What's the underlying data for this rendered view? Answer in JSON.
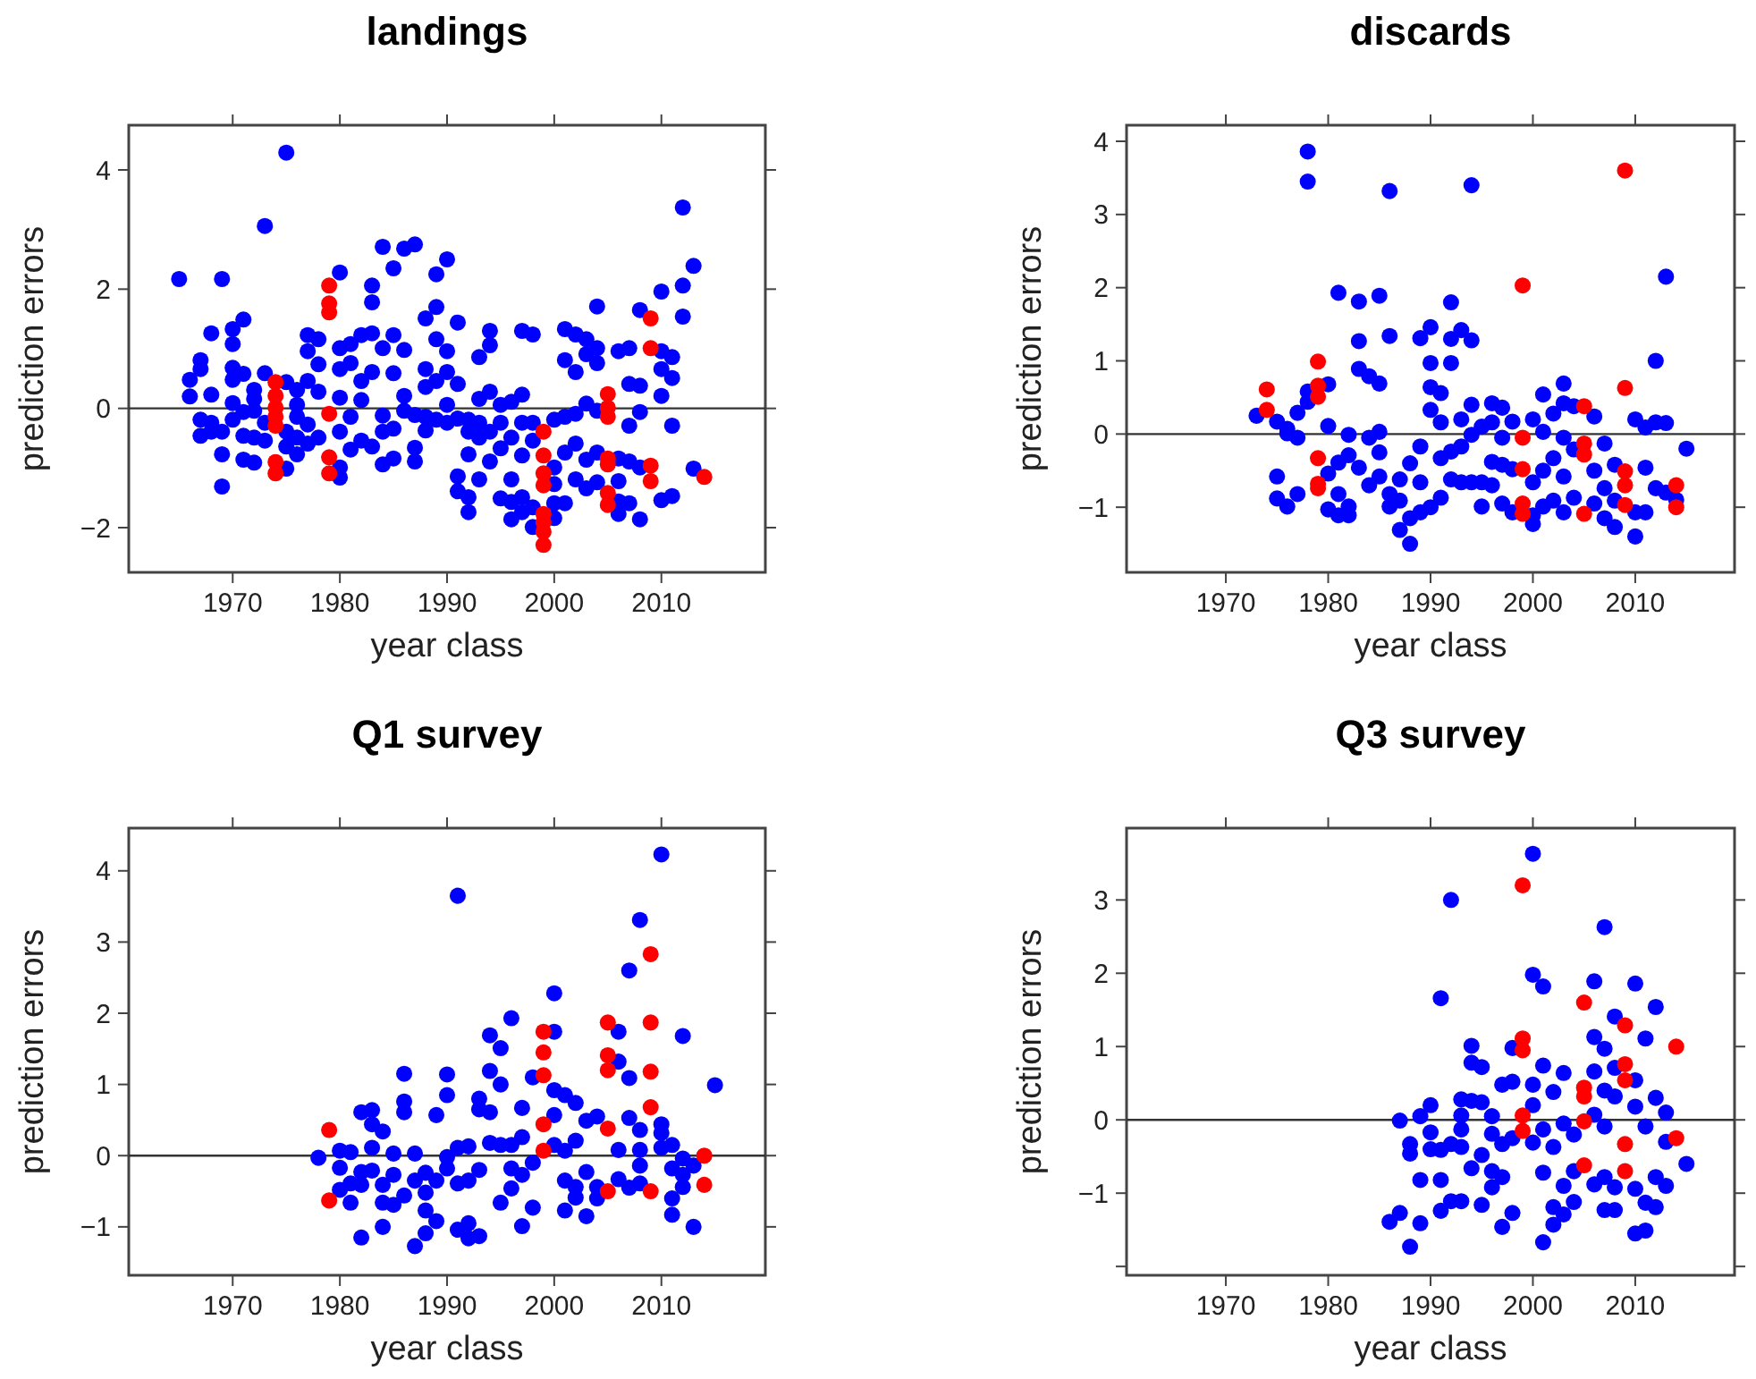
{
  "chart_data": [
    {
      "type": "scatter",
      "title": "landings",
      "xlabel": "year class",
      "ylabel": "prediction errors",
      "xlim": [
        1960.3,
        2019.7
      ],
      "ylim": [
        -2.75,
        4.75
      ],
      "xticks": [
        1970,
        1980,
        1990,
        2000,
        2010
      ],
      "yticks": [
        -2,
        0,
        2,
        4
      ],
      "marker": "circle",
      "ref_lines": [
        {
          "axis": "y",
          "value": 0,
          "color": "#333333"
        }
      ],
      "series": [
        {
          "color": "#0000ff",
          "x": [
            1965,
            1966,
            1966,
            1967,
            1967,
            1967,
            1967,
            1968,
            1968,
            1968,
            1968,
            1969,
            1969,
            1969,
            1969,
            1970,
            1970,
            1970,
            1970,
            1970,
            1970,
            1971,
            1971,
            1971,
            1971,
            1971,
            1972,
            1972,
            1972,
            1972,
            1972,
            1973,
            1973,
            1973,
            1973,
            1975,
            1975,
            1975,
            1975,
            1975,
            1976,
            1976,
            1976,
            1976,
            1976,
            1977,
            1977,
            1977,
            1977,
            1977,
            1978,
            1978,
            1978,
            1978,
            1980,
            1980,
            1980,
            1980,
            1980,
            1980,
            1980,
            1981,
            1981,
            1981,
            1981,
            1982,
            1982,
            1982,
            1982,
            1983,
            1983,
            1983,
            1983,
            1983,
            1984,
            1984,
            1984,
            1984,
            1984,
            1985,
            1985,
            1985,
            1985,
            1985,
            1986,
            1986,
            1986,
            1986,
            1987,
            1987,
            1987,
            1987,
            1988,
            1988,
            1988,
            1988,
            1988,
            1989,
            1989,
            1989,
            1989,
            1989,
            1990,
            1990,
            1990,
            1990,
            1990,
            1991,
            1991,
            1991,
            1991,
            1991,
            1992,
            1992,
            1992,
            1992,
            1992,
            1993,
            1993,
            1993,
            1993,
            1993,
            1994,
            1994,
            1994,
            1994,
            1994,
            1995,
            1995,
            1995,
            1995,
            1996,
            1996,
            1996,
            1996,
            1996,
            1997,
            1997,
            1997,
            1997,
            1997,
            1997,
            1998,
            1998,
            1998,
            1998,
            1998,
            2000,
            2000,
            2000,
            2000,
            2000,
            2001,
            2001,
            2001,
            2001,
            2001,
            2002,
            2002,
            2002,
            2002,
            2002,
            2003,
            2003,
            2003,
            2003,
            2003,
            2004,
            2004,
            2004,
            2004,
            2004,
            2004,
            2006,
            2006,
            2006,
            2006,
            2006,
            2007,
            2007,
            2007,
            2007,
            2007,
            2008,
            2008,
            2008,
            2008,
            2008,
            2010,
            2010,
            2010,
            2010,
            2010,
            2011,
            2011,
            2011,
            2011,
            2012,
            2012,
            2012,
            2013,
            2013
          ],
          "values": [
            2.17,
            0.48,
            0.2,
            0.81,
            0.66,
            -0.19,
            -0.46,
            1.26,
            0.23,
            -0.24,
            -0.39,
            2.17,
            -0.77,
            -1.31,
            -0.39,
            1.33,
            1.08,
            0.68,
            0.48,
            0.09,
            -0.19,
            1.49,
            0.58,
            -0.06,
            -0.46,
            -0.86,
            0.31,
            0.16,
            -0.04,
            -0.49,
            -0.91,
            3.06,
            0.59,
            -0.24,
            -0.54,
            4.29,
            0.44,
            -0.39,
            -0.64,
            -1.01,
            0.31,
            0.06,
            -0.14,
            -0.49,
            -0.77,
            1.23,
            0.96,
            0.46,
            -0.27,
            -0.59,
            1.16,
            0.74,
            0.28,
            -0.49,
            2.28,
            1.01,
            0.66,
            0.18,
            -0.39,
            -0.99,
            -1.16,
            1.08,
            0.76,
            -0.14,
            -0.69,
            1.23,
            0.46,
            0.14,
            -0.54,
            2.06,
            1.78,
            1.26,
            0.61,
            -0.64,
            2.71,
            1.01,
            -0.12,
            -0.39,
            -0.94,
            2.35,
            1.23,
            0.59,
            -0.34,
            -0.84,
            2.68,
            0.98,
            0.21,
            -0.04,
            2.75,
            -0.11,
            -0.66,
            -0.89,
            1.51,
            0.66,
            0.36,
            -0.14,
            -0.37,
            2.25,
            1.7,
            1.16,
            0.46,
            -0.19,
            2.5,
            0.96,
            0.61,
            0.06,
            -0.24,
            1.44,
            0.41,
            -0.17,
            -1.14,
            -1.39,
            -0.19,
            -0.39,
            -0.77,
            -1.49,
            -1.74,
            0.86,
            0.16,
            -0.24,
            -0.49,
            -1.19,
            1.3,
            1.06,
            0.28,
            -0.39,
            -0.89,
            0.06,
            -0.24,
            -0.67,
            -1.51,
            0.11,
            -0.49,
            -1.19,
            -1.57,
            -1.86,
            1.3,
            0.23,
            -0.24,
            -0.79,
            -1.49,
            -1.74,
            1.24,
            -0.24,
            -0.54,
            -1.66,
            -1.99,
            -0.19,
            -0.99,
            -1.27,
            -1.59,
            -1.84,
            1.33,
            0.81,
            -0.14,
            -0.74,
            -1.59,
            1.24,
            0.61,
            -0.09,
            -0.59,
            -1.19,
            1.16,
            0.91,
            0.08,
            -0.86,
            -1.34,
            1.71,
            1.01,
            0.76,
            -0.04,
            -0.74,
            -1.24,
            0.96,
            -0.84,
            -1.22,
            -1.56,
            -1.77,
            1.01,
            0.41,
            -0.29,
            -0.89,
            -1.59,
            1.65,
            0.38,
            -0.06,
            -0.99,
            -1.86,
            1.96,
            0.96,
            0.66,
            0.21,
            -1.54,
            0.86,
            0.51,
            -0.29,
            -1.47,
            3.37,
            2.06,
            1.54,
            2.39,
            -1.01
          ]
        },
        {
          "color": "#ff0000",
          "x": [
            1974,
            1974,
            1974,
            1974,
            1974,
            1974,
            1974,
            1979,
            1979,
            1979,
            1979,
            1979,
            1979,
            1999,
            1999,
            1999,
            1999,
            1999,
            1999,
            1999,
            1999,
            2005,
            2005,
            2005,
            2005,
            2005,
            2005,
            2005,
            2009,
            2009,
            2009,
            2009,
            2014
          ],
          "values": [
            0.44,
            0.21,
            0.01,
            -0.14,
            -0.29,
            -0.9,
            -1.09,
            2.06,
            1.76,
            1.61,
            -0.09,
            -0.82,
            -1.09,
            -0.39,
            -0.79,
            -1.09,
            -1.29,
            -1.77,
            -1.91,
            -2.07,
            -2.29,
            0.24,
            0.01,
            -0.14,
            -0.84,
            -0.94,
            -1.42,
            -1.62,
            1.51,
            1.01,
            -0.96,
            -1.22,
            -1.15
          ]
        }
      ]
    },
    {
      "type": "scatter",
      "title": "discards",
      "xlabel": "year class",
      "ylabel": "prediction errors",
      "xlim": [
        1960.3,
        2019.7
      ],
      "ylim": [
        -1.89,
        4.22
      ],
      "xticks": [
        1970,
        1980,
        1990,
        2000,
        2010
      ],
      "yticks": [
        -1,
        0,
        1,
        2,
        3,
        4
      ],
      "marker": "circle",
      "ref_lines": [
        {
          "axis": "y",
          "value": 0,
          "color": "#333333"
        }
      ],
      "series": [
        {
          "color": "#0000ff",
          "x": [
            1973,
            1975,
            1975,
            1975,
            1976,
            1976,
            1976,
            1977,
            1977,
            1977,
            1978,
            1978,
            1978,
            1978,
            1980,
            1980,
            1980,
            1980,
            1981,
            1981,
            1981,
            1981,
            1982,
            1982,
            1982,
            1982,
            1983,
            1983,
            1983,
            1983,
            1984,
            1984,
            1984,
            1985,
            1985,
            1985,
            1985,
            1985,
            1986,
            1986,
            1986,
            1986,
            1987,
            1987,
            1987,
            1988,
            1988,
            1988,
            1989,
            1989,
            1989,
            1989,
            1990,
            1990,
            1990,
            1990,
            1990,
            1991,
            1991,
            1991,
            1991,
            1992,
            1992,
            1992,
            1992,
            1992,
            1993,
            1993,
            1993,
            1993,
            1994,
            1994,
            1994,
            1994,
            1994,
            1995,
            1995,
            1995,
            1996,
            1996,
            1996,
            1996,
            1997,
            1997,
            1997,
            1997,
            1998,
            1998,
            1998,
            2000,
            2000,
            2000,
            2000,
            2001,
            2001,
            2001,
            2001,
            2002,
            2002,
            2002,
            2003,
            2003,
            2003,
            2003,
            2003,
            2004,
            2004,
            2004,
            2006,
            2006,
            2006,
            2007,
            2007,
            2007,
            2008,
            2008,
            2008,
            2010,
            2010,
            2010,
            2011,
            2011,
            2011,
            2012,
            2012,
            2012,
            2013,
            2013,
            2013,
            2014,
            2015
          ],
          "values": [
            0.25,
            0.17,
            -0.58,
            -0.88,
            0.07,
            0.01,
            -0.99,
            0.29,
            -0.05,
            -0.82,
            3.86,
            3.45,
            0.58,
            0.44,
            0.68,
            0.11,
            -0.54,
            -1.03,
            1.93,
            -0.39,
            -0.82,
            -1.11,
            -0.01,
            -0.29,
            -0.99,
            -1.11,
            1.81,
            1.27,
            0.89,
            -0.46,
            0.79,
            -0.05,
            -0.7,
            1.89,
            0.69,
            0.03,
            -0.25,
            -0.58,
            3.32,
            1.34,
            -0.82,
            -0.99,
            -0.62,
            -0.91,
            -1.31,
            -0.4,
            -1.15,
            -1.5,
            1.31,
            -0.17,
            -0.66,
            -1.07,
            1.46,
            0.97,
            0.64,
            0.33,
            -1.0,
            0.56,
            0.16,
            -0.33,
            -0.87,
            1.8,
            1.3,
            0.97,
            -0.24,
            -0.62,
            1.42,
            0.2,
            -0.17,
            -0.66,
            3.4,
            1.28,
            0.4,
            -0.01,
            -0.66,
            0.1,
            -0.66,
            -0.99,
            0.42,
            0.16,
            -0.38,
            -0.7,
            0.36,
            -0.05,
            -0.42,
            -0.95,
            0.17,
            -0.48,
            -1.07,
            0.2,
            -0.66,
            -1.23,
            -1.11,
            0.54,
            0.03,
            -0.5,
            -0.99,
            0.28,
            -0.33,
            -0.91,
            0.69,
            0.42,
            -0.05,
            -0.58,
            -1.07,
            0.38,
            -0.21,
            -0.87,
            0.24,
            -0.5,
            -0.95,
            -0.13,
            -0.74,
            -1.15,
            -0.42,
            -1.27,
            -0.91,
            0.2,
            -1.4,
            -1.07,
            0.09,
            -0.46,
            -1.07,
            1.0,
            0.16,
            -0.74,
            2.15,
            0.15,
            -0.8,
            -0.9,
            -0.2
          ]
        },
        {
          "color": "#ff0000",
          "x": [
            1974,
            1974,
            1979,
            1979,
            1979,
            1979,
            1979,
            1979,
            1999,
            1999,
            1999,
            1999,
            1999,
            2005,
            2005,
            2005,
            2005,
            2009,
            2009,
            2009,
            2009,
            2009,
            2014,
            2014
          ],
          "values": [
            0.61,
            0.33,
            0.99,
            0.66,
            0.51,
            -0.33,
            -0.68,
            -0.74,
            2.03,
            -0.05,
            -0.48,
            -0.95,
            -1.09,
            0.38,
            -0.13,
            -0.28,
            -1.09,
            3.6,
            0.63,
            -0.51,
            -0.7,
            -0.97,
            -0.7,
            -1.0
          ]
        }
      ]
    },
    {
      "type": "scatter",
      "title": "Q1 survey",
      "xlabel": "year class",
      "ylabel": "prediction errors",
      "xlim": [
        1960.3,
        2019.7
      ],
      "ylim": [
        -1.68,
        4.6
      ],
      "xticks": [
        1970,
        1980,
        1990,
        2000,
        2010
      ],
      "yticks": [
        -1,
        0,
        1,
        2,
        3,
        4
      ],
      "marker": "circle",
      "ref_lines": [
        {
          "axis": "y",
          "value": 0,
          "color": "#333333"
        }
      ],
      "series": [
        {
          "color": "#0000ff",
          "x": [
            1978,
            1980,
            1980,
            1980,
            1981,
            1981,
            1981,
            1982,
            1982,
            1982,
            1982,
            1983,
            1983,
            1983,
            1983,
            1984,
            1984,
            1984,
            1984,
            1985,
            1985,
            1985,
            1986,
            1986,
            1986,
            1986,
            1987,
            1987,
            1987,
            1988,
            1988,
            1988,
            1988,
            1989,
            1989,
            1989,
            1990,
            1990,
            1990,
            1990,
            1991,
            1991,
            1991,
            1991,
            1992,
            1992,
            1992,
            1992,
            1993,
            1993,
            1993,
            1993,
            1994,
            1994,
            1994,
            1994,
            1995,
            1995,
            1995,
            1995,
            1996,
            1996,
            1996,
            1996,
            1997,
            1997,
            1997,
            1997,
            1998,
            1998,
            1998,
            2000,
            2000,
            2000,
            2000,
            2000,
            2001,
            2001,
            2001,
            2001,
            2002,
            2002,
            2002,
            2002,
            2003,
            2003,
            2003,
            2004,
            2004,
            2004,
            2006,
            2006,
            2006,
            2006,
            2007,
            2007,
            2007,
            2007,
            2008,
            2008,
            2008,
            2008,
            2008,
            2010,
            2010,
            2010,
            2010,
            2011,
            2011,
            2011,
            2011,
            2012,
            2012,
            2012,
            2012,
            2013,
            2013,
            2015
          ],
          "values": [
            -0.03,
            0.07,
            -0.17,
            -0.48,
            0.05,
            -0.39,
            -0.66,
            0.61,
            -0.23,
            -0.41,
            -1.15,
            0.64,
            0.44,
            0.11,
            -0.21,
            0.34,
            -0.41,
            -0.66,
            -1.0,
            0.03,
            -0.27,
            -0.69,
            1.15,
            0.76,
            0.61,
            -0.56,
            0.03,
            -0.35,
            -1.27,
            -0.24,
            -0.52,
            -0.77,
            -1.09,
            0.57,
            -0.35,
            -0.92,
            1.14,
            0.85,
            -0.02,
            -0.18,
            3.65,
            0.11,
            -0.39,
            -1.04,
            0.13,
            -0.35,
            -0.95,
            -1.16,
            0.8,
            0.65,
            -0.2,
            -1.13,
            1.69,
            1.19,
            0.61,
            0.18,
            1.51,
            1.0,
            0.15,
            -0.66,
            1.93,
            0.15,
            -0.18,
            -0.46,
            0.67,
            0.26,
            -0.27,
            -0.99,
            1.1,
            -0.1,
            -0.73,
            2.28,
            1.74,
            0.92,
            0.57,
            0.15,
            0.85,
            0.07,
            -0.35,
            -0.77,
            0.74,
            0.21,
            -0.44,
            -0.59,
            0.49,
            -0.23,
            -0.85,
            0.55,
            -0.44,
            -0.6,
            1.74,
            1.32,
            0.08,
            -0.33,
            2.6,
            1.09,
            0.53,
            -0.45,
            3.31,
            0.36,
            0.08,
            -0.14,
            -0.39,
            4.23,
            0.44,
            0.32,
            0.11,
            0.15,
            -0.18,
            -0.6,
            -0.83,
            1.68,
            -0.04,
            -0.27,
            -0.44,
            -0.14,
            -1.0,
            0.99
          ]
        },
        {
          "color": "#ff0000",
          "x": [
            1979,
            1979,
            1999,
            1999,
            1999,
            1999,
            1999,
            2005,
            2005,
            2005,
            2005,
            2005,
            2009,
            2009,
            2009,
            2009,
            2009,
            2014,
            2014
          ],
          "values": [
            0.36,
            -0.63,
            1.74,
            1.45,
            1.13,
            0.44,
            0.07,
            1.87,
            1.41,
            1.2,
            0.38,
            -0.5,
            2.83,
            1.87,
            1.18,
            0.68,
            -0.5,
            0.0,
            -0.41
          ]
        }
      ]
    },
    {
      "type": "scatter",
      "title": "Q3 survey",
      "xlabel": "year class",
      "ylabel": "prediction errors",
      "xlim": [
        1960.3,
        2019.7
      ],
      "ylim": [
        -2.12,
        3.98
      ],
      "xticks": [
        1970,
        1980,
        1990,
        2000,
        2010
      ],
      "yticks": [
        {
          "value": -2,
          "label": null
        },
        -1,
        0,
        1,
        2,
        3
      ],
      "marker": "circle",
      "ref_lines": [
        {
          "axis": "y",
          "value": 0,
          "color": "#333333"
        }
      ],
      "series": [
        {
          "color": "#0000ff",
          "x": [
            1986,
            1987,
            1987,
            1988,
            1988,
            1988,
            1989,
            1989,
            1989,
            1990,
            1990,
            1990,
            1991,
            1991,
            1991,
            1991,
            1992,
            1992,
            1992,
            1993,
            1993,
            1993,
            1993,
            1993,
            1994,
            1994,
            1994,
            1994,
            1995,
            1995,
            1995,
            1995,
            1996,
            1996,
            1996,
            1996,
            1997,
            1997,
            1997,
            1997,
            1998,
            1998,
            1998,
            1998,
            2000,
            2000,
            2000,
            2000,
            2000,
            2001,
            2001,
            2001,
            2001,
            2001,
            2002,
            2002,
            2002,
            2002,
            2003,
            2003,
            2003,
            2003,
            2004,
            2004,
            2004,
            2006,
            2006,
            2006,
            2006,
            2006,
            2007,
            2007,
            2007,
            2007,
            2007,
            2007,
            2008,
            2008,
            2008,
            2008,
            2008,
            2010,
            2010,
            2010,
            2010,
            2010,
            2011,
            2011,
            2011,
            2011,
            2012,
            2012,
            2012,
            2012,
            2013,
            2013,
            2013,
            2015
          ],
          "values": [
            -1.39,
            -0.01,
            -1.27,
            -0.33,
            -0.46,
            -1.73,
            0.05,
            -0.82,
            -1.41,
            0.2,
            -0.17,
            -0.4,
            1.66,
            -0.41,
            -0.82,
            -1.24,
            3.0,
            -0.33,
            -1.11,
            0.28,
            0.06,
            -0.13,
            -0.37,
            -1.11,
            1.01,
            0.78,
            0.26,
            -0.66,
            0.72,
            0.24,
            -0.48,
            -1.16,
            0.05,
            -0.19,
            -0.7,
            -0.92,
            0.48,
            -0.33,
            -0.78,
            -1.46,
            0.98,
            0.52,
            -0.25,
            -1.27,
            3.63,
            1.98,
            0.48,
            0.2,
            -0.31,
            1.82,
            0.74,
            -0.13,
            -0.72,
            -1.67,
            0.38,
            -0.37,
            -1.19,
            -1.43,
            0.64,
            -0.05,
            -0.9,
            -1.29,
            -0.2,
            -0.7,
            -1.12,
            1.89,
            1.13,
            0.66,
            0.07,
            -0.88,
            2.63,
            0.97,
            0.4,
            -0.09,
            -0.78,
            -1.23,
            1.41,
            0.71,
            0.32,
            -0.92,
            -1.23,
            1.86,
            0.54,
            0.18,
            -0.94,
            -1.55,
            1.11,
            -0.09,
            -1.13,
            -1.51,
            1.54,
            0.3,
            -0.78,
            -1.19,
            0.1,
            -0.3,
            -0.9,
            -0.6
          ]
        },
        {
          "color": "#ff0000",
          "x": [
            1999,
            1999,
            1999,
            1999,
            1999,
            2005,
            2005,
            2005,
            2005,
            2005,
            2009,
            2009,
            2009,
            2009,
            2009,
            2014,
            2014
          ],
          "values": [
            3.2,
            1.11,
            0.95,
            0.06,
            -0.15,
            1.6,
            0.44,
            0.32,
            -0.02,
            -0.62,
            1.29,
            0.76,
            0.54,
            -0.33,
            -0.7,
            1.0,
            -0.25
          ]
        }
      ]
    }
  ]
}
